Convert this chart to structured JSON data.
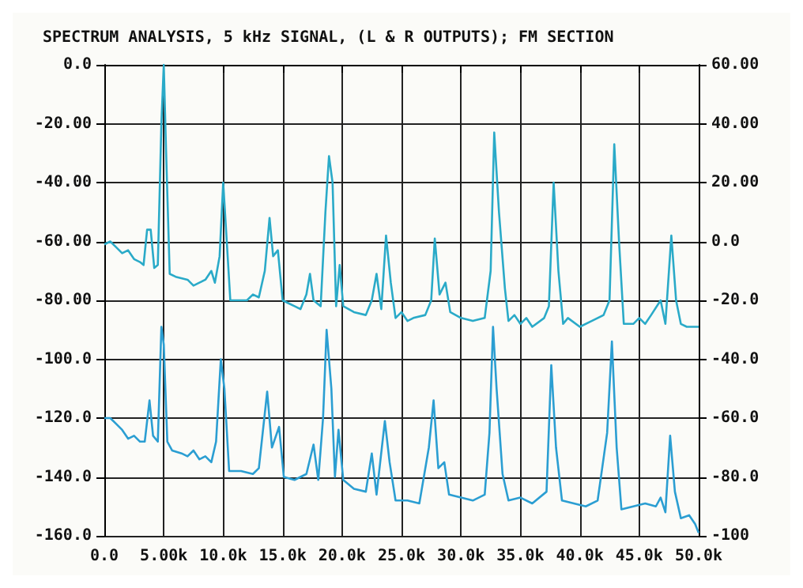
{
  "chart_data": {
    "type": "line",
    "title": "SPECTRUM ANALYSIS, 5 kHz SIGNAL, (L & R OUTPUTS); FM SECTION",
    "xlim": [
      0,
      50000
    ],
    "xticks": [
      {
        "value": 0,
        "label": "0.0"
      },
      {
        "value": 5000,
        "label": "5.00k"
      },
      {
        "value": 10000,
        "label": "10.0k"
      },
      {
        "value": 15000,
        "label": "15.0k"
      },
      {
        "value": 20000,
        "label": "20.0k"
      },
      {
        "value": 25000,
        "label": "25.0k"
      },
      {
        "value": 30000,
        "label": "30.0k"
      },
      {
        "value": 35000,
        "label": "35.0k"
      },
      {
        "value": 40000,
        "label": "40.0k"
      },
      {
        "value": 45000,
        "label": "45.0k"
      },
      {
        "value": 50000,
        "label": "50.0k"
      }
    ],
    "ylim": [
      -160,
      0
    ],
    "yticks": [
      {
        "value": 0,
        "label": "0.0"
      },
      {
        "value": -20,
        "label": "-20.00"
      },
      {
        "value": -40,
        "label": "-40.00"
      },
      {
        "value": -60,
        "label": "-60.00"
      },
      {
        "value": -80,
        "label": "-80.00"
      },
      {
        "value": -100,
        "label": "-100.0"
      },
      {
        "value": -120,
        "label": "-120.0"
      },
      {
        "value": -140,
        "label": "-140.0"
      },
      {
        "value": -160,
        "label": "-160.0"
      }
    ],
    "y2lim": [
      -100,
      60
    ],
    "y2ticks": [
      {
        "value": 60,
        "label": "60.00"
      },
      {
        "value": 40,
        "label": "40.00"
      },
      {
        "value": 20,
        "label": "20.00"
      },
      {
        "value": 0,
        "label": "0.0"
      },
      {
        "value": -20,
        "label": "-20.0"
      },
      {
        "value": -40,
        "label": "-40.0"
      },
      {
        "value": -60,
        "label": "-60.0"
      },
      {
        "value": -80,
        "label": "-80.0"
      },
      {
        "value": -100,
        "label": "-100"
      }
    ],
    "grid": true,
    "series": [
      {
        "color": "#2aaac8",
        "x": [
          0,
          500,
          1000,
          1500,
          2000,
          2500,
          3000,
          3300,
          3600,
          3900,
          4200,
          4500,
          4800,
          5000,
          5200,
          5500,
          6000,
          7000,
          7500,
          8000,
          8500,
          9000,
          9300,
          9700,
          10000,
          10300,
          10600,
          11500,
          12000,
          12500,
          13000,
          13500,
          13900,
          14200,
          14600,
          15000,
          15500,
          16000,
          16500,
          17000,
          17300,
          17600,
          18200,
          18600,
          18900,
          19200,
          19500,
          19800,
          20100,
          21000,
          22000,
          22500,
          22900,
          23300,
          23700,
          24100,
          24500,
          25000,
          25500,
          26000,
          27000,
          27500,
          27800,
          28200,
          28700,
          29100,
          30000,
          31000,
          32000,
          32500,
          32800,
          33200,
          33700,
          34000,
          34500,
          35000,
          35500,
          36000,
          37000,
          37400,
          37800,
          38200,
          38600,
          39000,
          40000,
          41000,
          42000,
          42500,
          42900,
          43300,
          43700,
          44500,
          45000,
          45500,
          46000,
          46800,
          47200,
          47700,
          48100,
          48500,
          49000,
          50000
        ],
        "values": [
          -61,
          -60,
          -62,
          -64,
          -63,
          -66,
          -67,
          -68,
          -56,
          -56,
          -69,
          -68,
          -20,
          0,
          -30,
          -71,
          -72,
          -73,
          -75,
          -74,
          -73,
          -70,
          -74,
          -65,
          -40,
          -60,
          -80,
          -80,
          -80,
          -78,
          -79,
          -70,
          -52,
          -65,
          -63,
          -80,
          -81,
          -82,
          -83,
          -78,
          -71,
          -80,
          -82,
          -50,
          -31,
          -40,
          -82,
          -68,
          -82,
          -84,
          -85,
          -80,
          -71,
          -83,
          -58,
          -74,
          -86,
          -84,
          -87,
          -86,
          -85,
          -80,
          -59,
          -78,
          -74,
          -84,
          -86,
          -87,
          -86,
          -70,
          -23,
          -50,
          -76,
          -87,
          -85,
          -88,
          -86,
          -89,
          -86,
          -82,
          -40,
          -70,
          -88,
          -86,
          -89,
          -87,
          -85,
          -80,
          -27,
          -60,
          -88,
          -88,
          -86,
          -88,
          -85,
          -80,
          -88,
          -58,
          -80,
          -88,
          -89,
          -89
        ]
      },
      {
        "color": "#2b9ed2",
        "x": [
          0,
          500,
          1000,
          1500,
          2000,
          2500,
          3000,
          3400,
          3800,
          4100,
          4500,
          4800,
          5000,
          5300,
          5700,
          6500,
          7000,
          7500,
          8000,
          8500,
          9000,
          9400,
          9800,
          10100,
          10500,
          11500,
          12500,
          13000,
          13700,
          14100,
          14700,
          15100,
          16000,
          16500,
          17000,
          17600,
          18000,
          18400,
          18700,
          19100,
          19400,
          19700,
          20100,
          21000,
          22000,
          22500,
          22900,
          23600,
          24000,
          24500,
          25500,
          26500,
          27300,
          27700,
          28100,
          28600,
          29000,
          30000,
          31000,
          32000,
          32400,
          32700,
          33000,
          33500,
          34000,
          35000,
          36000,
          37200,
          37600,
          38000,
          38500,
          39500,
          40500,
          41500,
          42300,
          42700,
          43100,
          43500,
          44500,
          45500,
          46400,
          46800,
          47200,
          47600,
          48000,
          48500,
          49200,
          49700,
          50000
        ],
        "values": [
          -120,
          -120,
          -122,
          -124,
          -127,
          -126,
          -128,
          -128,
          -114,
          -126,
          -128,
          -89,
          -95,
          -128,
          -131,
          -132,
          -133,
          -131,
          -134,
          -133,
          -135,
          -128,
          -100,
          -110,
          -138,
          -138,
          -139,
          -137,
          -111,
          -130,
          -123,
          -140,
          -141,
          -140,
          -139,
          -129,
          -141,
          -120,
          -90,
          -110,
          -140,
          -124,
          -141,
          -144,
          -145,
          -132,
          -146,
          -121,
          -135,
          -148,
          -148,
          -149,
          -130,
          -114,
          -137,
          -135,
          -146,
          -147,
          -148,
          -146,
          -125,
          -89,
          -110,
          -139,
          -148,
          -147,
          -149,
          -145,
          -102,
          -130,
          -148,
          -149,
          -150,
          -148,
          -125,
          -94,
          -130,
          -151,
          -150,
          -149,
          -150,
          -147,
          -152,
          -126,
          -145,
          -154,
          -153,
          -156,
          -159
        ]
      }
    ]
  }
}
